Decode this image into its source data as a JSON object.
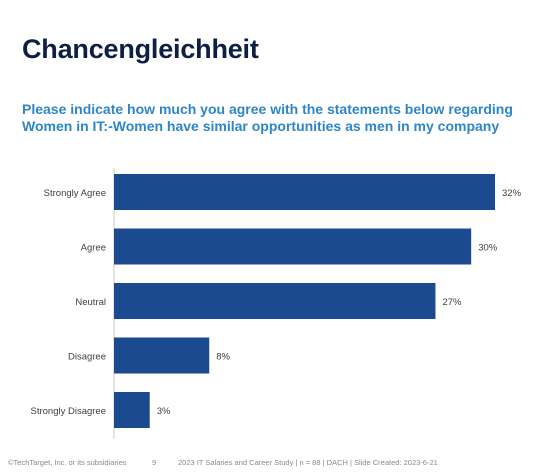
{
  "slide": {
    "title": "Chancengleichheit",
    "question_line1": "Please indicate how much you agree with the statements below regarding",
    "question_line2": "Women in IT:-Women have similar opportunities as men in my company"
  },
  "chart_data": {
    "type": "bar",
    "orientation": "horizontal",
    "categories": [
      "Strongly Agree",
      "Agree",
      "Neutral",
      "Disagree",
      "Strongly Disagree"
    ],
    "values": [
      32,
      30,
      27,
      8,
      3
    ],
    "value_labels": [
      "32%",
      "30%",
      "27%",
      "8%",
      "3%"
    ],
    "title": "",
    "xlabel": "",
    "ylabel": "",
    "xlim": [
      0,
      32
    ],
    "grid": false,
    "legend": "none",
    "bar_color": "#1b4a91"
  },
  "footer": {
    "copyright": "©TechTarget, Inc. or its subsidiaries",
    "page_number": "9",
    "study": "2023 IT Salaries and Career Study | n = 88 | DACH | Slide Created: 2023-6-21"
  },
  "colors": {
    "title": "#0d1f44",
    "question": "#2e86c8",
    "axis": "#c8c8c8",
    "label_text": "#404040"
  }
}
